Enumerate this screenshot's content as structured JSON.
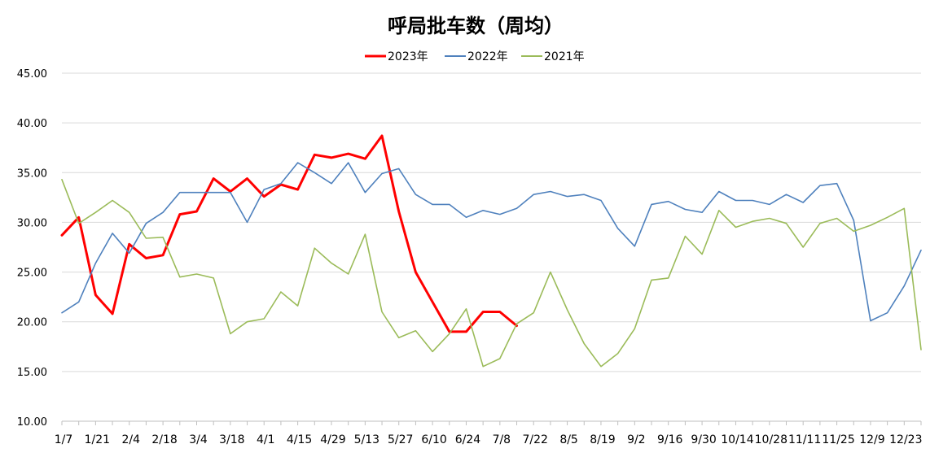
{
  "chart_data": {
    "type": "line",
    "title": "呼局批车数（周均）",
    "xlabel": "",
    "ylabel": "",
    "ylim": [
      10,
      45
    ],
    "yticks": [
      "10.00",
      "15.00",
      "20.00",
      "25.00",
      "30.00",
      "35.00",
      "40.00",
      "45.00"
    ],
    "grid": true,
    "legend_position": "top",
    "tick_labels": [
      "1/7",
      "1/21",
      "2/4",
      "2/18",
      "3/4",
      "3/18",
      "4/1",
      "4/15",
      "4/29",
      "5/13",
      "5/27",
      "6/10",
      "6/24",
      "7/8",
      "7/22",
      "8/5",
      "8/19",
      "9/2",
      "9/16",
      "9/30",
      "10/14",
      "10/28",
      "11/11",
      "11/25",
      "12/9",
      "12/23"
    ],
    "series": [
      {
        "name": "2023年",
        "color": "#ff0000",
        "width": 3,
        "values": [
          28.7,
          30.5,
          22.7,
          20.8,
          27.8,
          26.4,
          26.7,
          30.8,
          31.1,
          34.4,
          33.1,
          34.4,
          32.6,
          33.8,
          33.3,
          36.8,
          36.5,
          36.9,
          36.4,
          38.7,
          31.1,
          25.0,
          22.0,
          19.0,
          19.0,
          21.0,
          21.0,
          19.6
        ]
      },
      {
        "name": "2022年",
        "color": "#4f81bd",
        "width": 1.6,
        "values": [
          20.9,
          22.0,
          25.9,
          28.9,
          26.9,
          29.9,
          31.0,
          33.0,
          33.0,
          33.0,
          33.0,
          30.0,
          33.3,
          33.9,
          36.0,
          35.0,
          33.9,
          36.0,
          33.0,
          34.9,
          35.4,
          32.8,
          31.8,
          31.8,
          30.5,
          31.2,
          30.8,
          31.4,
          32.8,
          33.1,
          32.6,
          32.8,
          32.2,
          29.4,
          27.6,
          31.8,
          32.1,
          31.3,
          31.0,
          33.1,
          32.2,
          32.2,
          31.8,
          32.8,
          32.0,
          33.7,
          33.9,
          30.2,
          20.1,
          20.9,
          23.6,
          27.2
        ]
      },
      {
        "name": "2021年",
        "color": "#9bbb59",
        "width": 1.6,
        "values": [
          34.3,
          29.9,
          31.0,
          32.2,
          31.0,
          28.4,
          28.5,
          24.5,
          24.8,
          24.4,
          18.8,
          20.0,
          20.3,
          23.0,
          21.6,
          27.4,
          25.9,
          24.8,
          28.8,
          21.0,
          18.4,
          19.1,
          17.0,
          18.8,
          21.3,
          15.5,
          16.3,
          19.8,
          20.9,
          25.0,
          21.2,
          17.8,
          15.5,
          16.8,
          19.3,
          24.2,
          24.4,
          28.6,
          26.8,
          31.2,
          29.5,
          30.1,
          30.4,
          29.9,
          27.5,
          29.9,
          30.4,
          29.1,
          29.7,
          30.5,
          31.4,
          17.2
        ]
      }
    ]
  }
}
